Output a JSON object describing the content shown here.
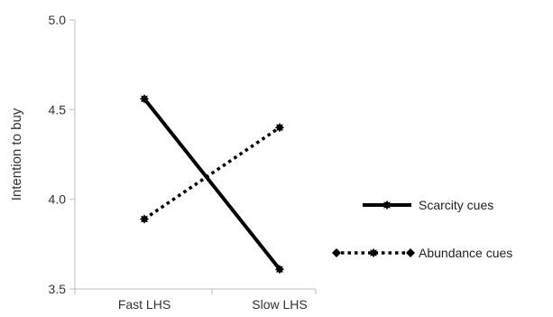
{
  "chart_data": {
    "type": "line",
    "title": "",
    "xlabel": "",
    "ylabel": "Intention to buy",
    "categories": [
      "Fast LHS",
      "Slow LHS"
    ],
    "ylim": [
      3.5,
      5.0
    ],
    "yticks": [
      "3.5",
      "4.0",
      "4.5",
      "5.0"
    ],
    "grid": false,
    "legend_position": "right",
    "series": [
      {
        "name": "Scarcity cues",
        "values": [
          4.56,
          3.61
        ],
        "line_style": "solid",
        "color": "#000000"
      },
      {
        "name": "Abundance cues",
        "values": [
          3.89,
          4.4
        ],
        "line_style": "dotted",
        "color": "#000000"
      }
    ]
  }
}
